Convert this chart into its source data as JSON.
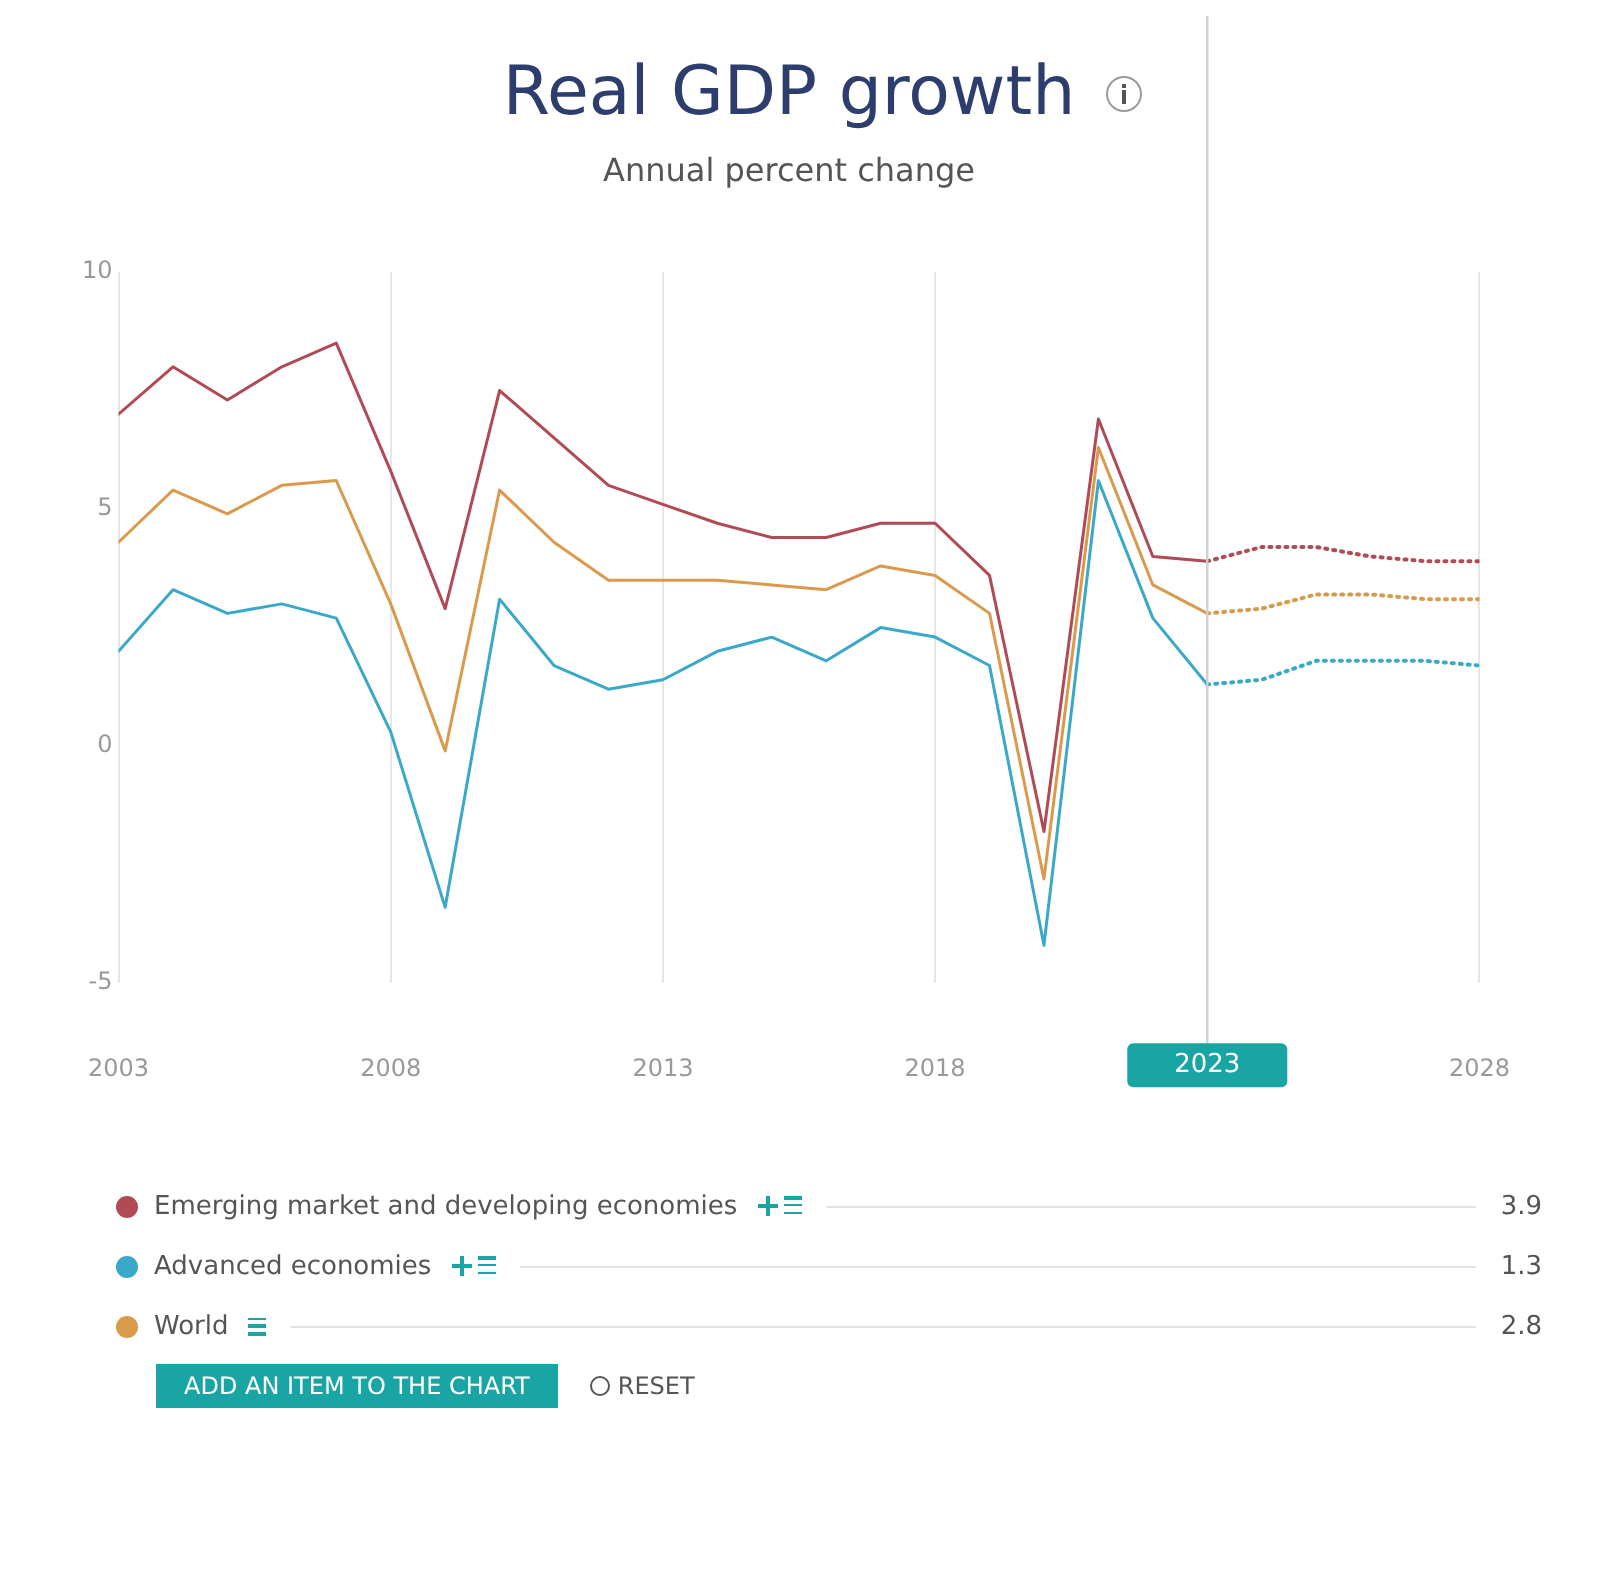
{
  "chart_data": {
    "type": "line",
    "title": "Real GDP growth",
    "subtitle": "Annual percent change",
    "x": [
      2003,
      2004,
      2005,
      2006,
      2007,
      2008,
      2009,
      2010,
      2011,
      2012,
      2013,
      2014,
      2015,
      2016,
      2017,
      2018,
      2019,
      2020,
      2021,
      2022,
      2023
    ],
    "series": [
      {
        "name": "Emerging market and developing economies",
        "color": "#b04a55",
        "values": [
          7.0,
          8.0,
          7.3,
          8.0,
          8.5,
          5.8,
          2.9,
          7.5,
          6.5,
          5.5,
          5.1,
          4.7,
          4.4,
          4.4,
          4.7,
          4.7,
          3.6,
          -1.8,
          6.9,
          4.0,
          3.9
        ]
      },
      {
        "name": "Advanced economies",
        "color": "#3aa8c8",
        "values": [
          2.0,
          3.3,
          2.8,
          3.0,
          2.7,
          0.3,
          -3.4,
          3.1,
          1.7,
          1.2,
          1.4,
          2.0,
          2.3,
          1.8,
          2.5,
          2.3,
          1.7,
          -4.2,
          5.6,
          2.7,
          1.3
        ]
      },
      {
        "name": "World",
        "color": "#d99a4c",
        "values": [
          4.3,
          5.4,
          4.9,
          5.5,
          5.6,
          3.0,
          -0.1,
          5.4,
          4.3,
          3.5,
          3.5,
          3.5,
          3.4,
          3.3,
          3.8,
          3.6,
          2.8,
          -2.8,
          6.3,
          3.4,
          2.8
        ]
      },
      {
        "color": "#b04a55",
        "line_style": "dotted",
        "x": [
          2023,
          2024,
          2025,
          2026,
          2027,
          2028
        ],
        "values": [
          3.9,
          4.2,
          4.2,
          4.0,
          3.9,
          3.9
        ]
      },
      {
        "color": "#3aa8c8",
        "line_style": "dotted",
        "x": [
          2023,
          2024,
          2025,
          2026,
          2027,
          2028
        ],
        "values": [
          1.3,
          1.4,
          1.8,
          1.8,
          1.8,
          1.7
        ]
      },
      {
        "color": "#d99a4c",
        "line_style": "dotted",
        "x": [
          2023,
          2024,
          2025,
          2026,
          2027,
          2028
        ],
        "values": [
          2.8,
          2.9,
          3.2,
          3.2,
          3.1,
          3.1
        ]
      }
    ],
    "xlim": [
      2003,
      2028
    ],
    "xticks": [
      2003,
      2008,
      2013,
      2018,
      2023,
      2028
    ],
    "ylim": [
      -5,
      10
    ],
    "yticks": [
      -5,
      0,
      5,
      10
    ],
    "grid": "x",
    "legend": "bottom",
    "marker": "none",
    "line_style": "solid",
    "ref_lines": [
      {
        "axis": "x",
        "value": 2023,
        "label": "2023",
        "color": "#d0d0d0"
      }
    ],
    "annotations": [
      "ADD AN ITEM TO THE CHART",
      "RESET",
      "3.9",
      "1.3",
      "2.8"
    ]
  }
}
